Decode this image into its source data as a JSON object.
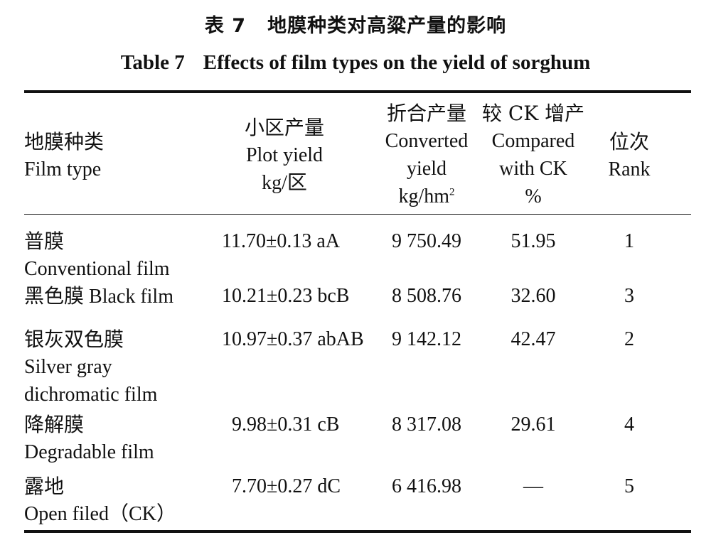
{
  "title_cn": {
    "number": "表 7",
    "text": "地膜种类对高粱产量的影响"
  },
  "title_en": {
    "number": "Table 7",
    "text": "Effects of film types on the yield of sorghum"
  },
  "headers": {
    "film_type": {
      "cn": "地膜种类",
      "en": "Film type"
    },
    "plot_yield": {
      "cn": "小区产量",
      "en": "Plot yield",
      "unit": "kg/区"
    },
    "converted_yield": {
      "cn": "折合产量",
      "en1": "Converted",
      "en2": "yield",
      "unit_base": "kg/hm",
      "unit_sup": "2"
    },
    "compared_ck": {
      "cn": "较 CK 增产",
      "en1": "Compared",
      "en2": "with CK",
      "unit": "%"
    },
    "rank": {
      "cn": "位次",
      "en": "Rank"
    }
  },
  "rows": [
    {
      "cn": "普膜",
      "en": "Conventional film",
      "plot": "11.70±0.13 aA",
      "converted": "9 750.49",
      "increase": "51.95",
      "rank": "1"
    },
    {
      "cn": "黑色膜",
      "en": "Black film",
      "plot": "10.21±0.23 bcB",
      "converted": "8 508.76",
      "increase": "32.60",
      "rank": "3"
    },
    {
      "cn": "银灰双色膜",
      "en1": "Silver gray",
      "en2": "dichromatic film",
      "plot": "10.97±0.37 abAB",
      "converted": "9 142.12",
      "increase": "42.47",
      "rank": "2"
    },
    {
      "cn": "降解膜",
      "en": "Degradable film",
      "plot": "9.98±0.31 cB",
      "converted": "8 317.08",
      "increase": "29.61",
      "rank": "4"
    },
    {
      "cn": "露地",
      "en": "Open filed（CK）",
      "plot": "7.70±0.27 dC",
      "converted": "6 416.98",
      "increase": "—",
      "rank": "5"
    }
  ]
}
